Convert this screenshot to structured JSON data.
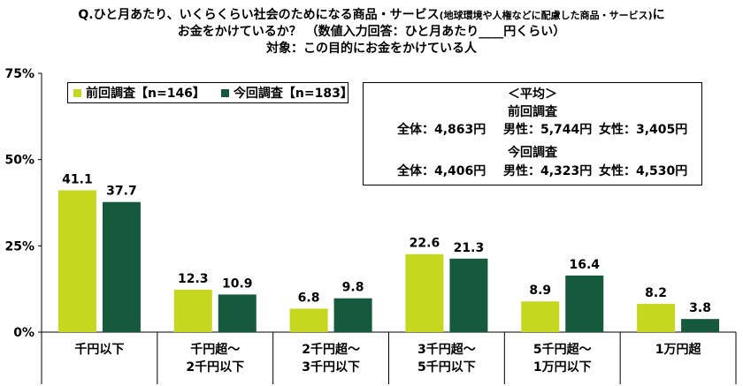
{
  "title": {
    "line1_a": "Q.ひと月あたり、いくらくらい社会のためになる商品・サービス",
    "line1_small": "(地球環境や人権などに配慮した商品・サービス)",
    "line1_b": "に",
    "line2": "お金をかけているか？ （数値入力回答：ひと月あたり____円くらい）",
    "line3": "対象：この目的にお金をかけている人"
  },
  "legend": {
    "previous": "前回調査【n=146】",
    "current": "今回調査【n=183】"
  },
  "average_box": {
    "heading": "＜平均＞",
    "previous_label": "前回調査",
    "previous_row": [
      "全体：4,863円",
      "男性：5,744円",
      "女性：3,405円"
    ],
    "current_label": "今回調査",
    "current_row": [
      "全体：4,406円",
      "男性：4,323円",
      "女性：4,530円"
    ]
  },
  "colors": {
    "previous": "#c5d81f",
    "current": "#155a3d",
    "axis": "#000000",
    "grid": "#d9d9d9"
  },
  "chart_data": {
    "type": "bar",
    "categories": [
      [
        "千円以下"
      ],
      [
        "千円超～",
        "2千円以下"
      ],
      [
        "2千円超～",
        "3千円以下"
      ],
      [
        "3千円超～",
        "5千円以下"
      ],
      [
        "5千円超～",
        "1万円以下"
      ],
      [
        "1万円超"
      ]
    ],
    "series": [
      {
        "name": "前回調査【n=146】",
        "values": [
          41.1,
          12.3,
          6.8,
          22.6,
          8.9,
          8.2
        ]
      },
      {
        "name": "今回調査【n=183】",
        "values": [
          37.7,
          10.9,
          9.8,
          21.3,
          16.4,
          3.8
        ]
      }
    ],
    "ylim": [
      0,
      75
    ],
    "yticks": [
      0,
      25,
      50,
      75
    ],
    "ytick_labels": [
      "0%",
      "25%",
      "50%",
      "75%"
    ],
    "legend_position": "top-left"
  }
}
